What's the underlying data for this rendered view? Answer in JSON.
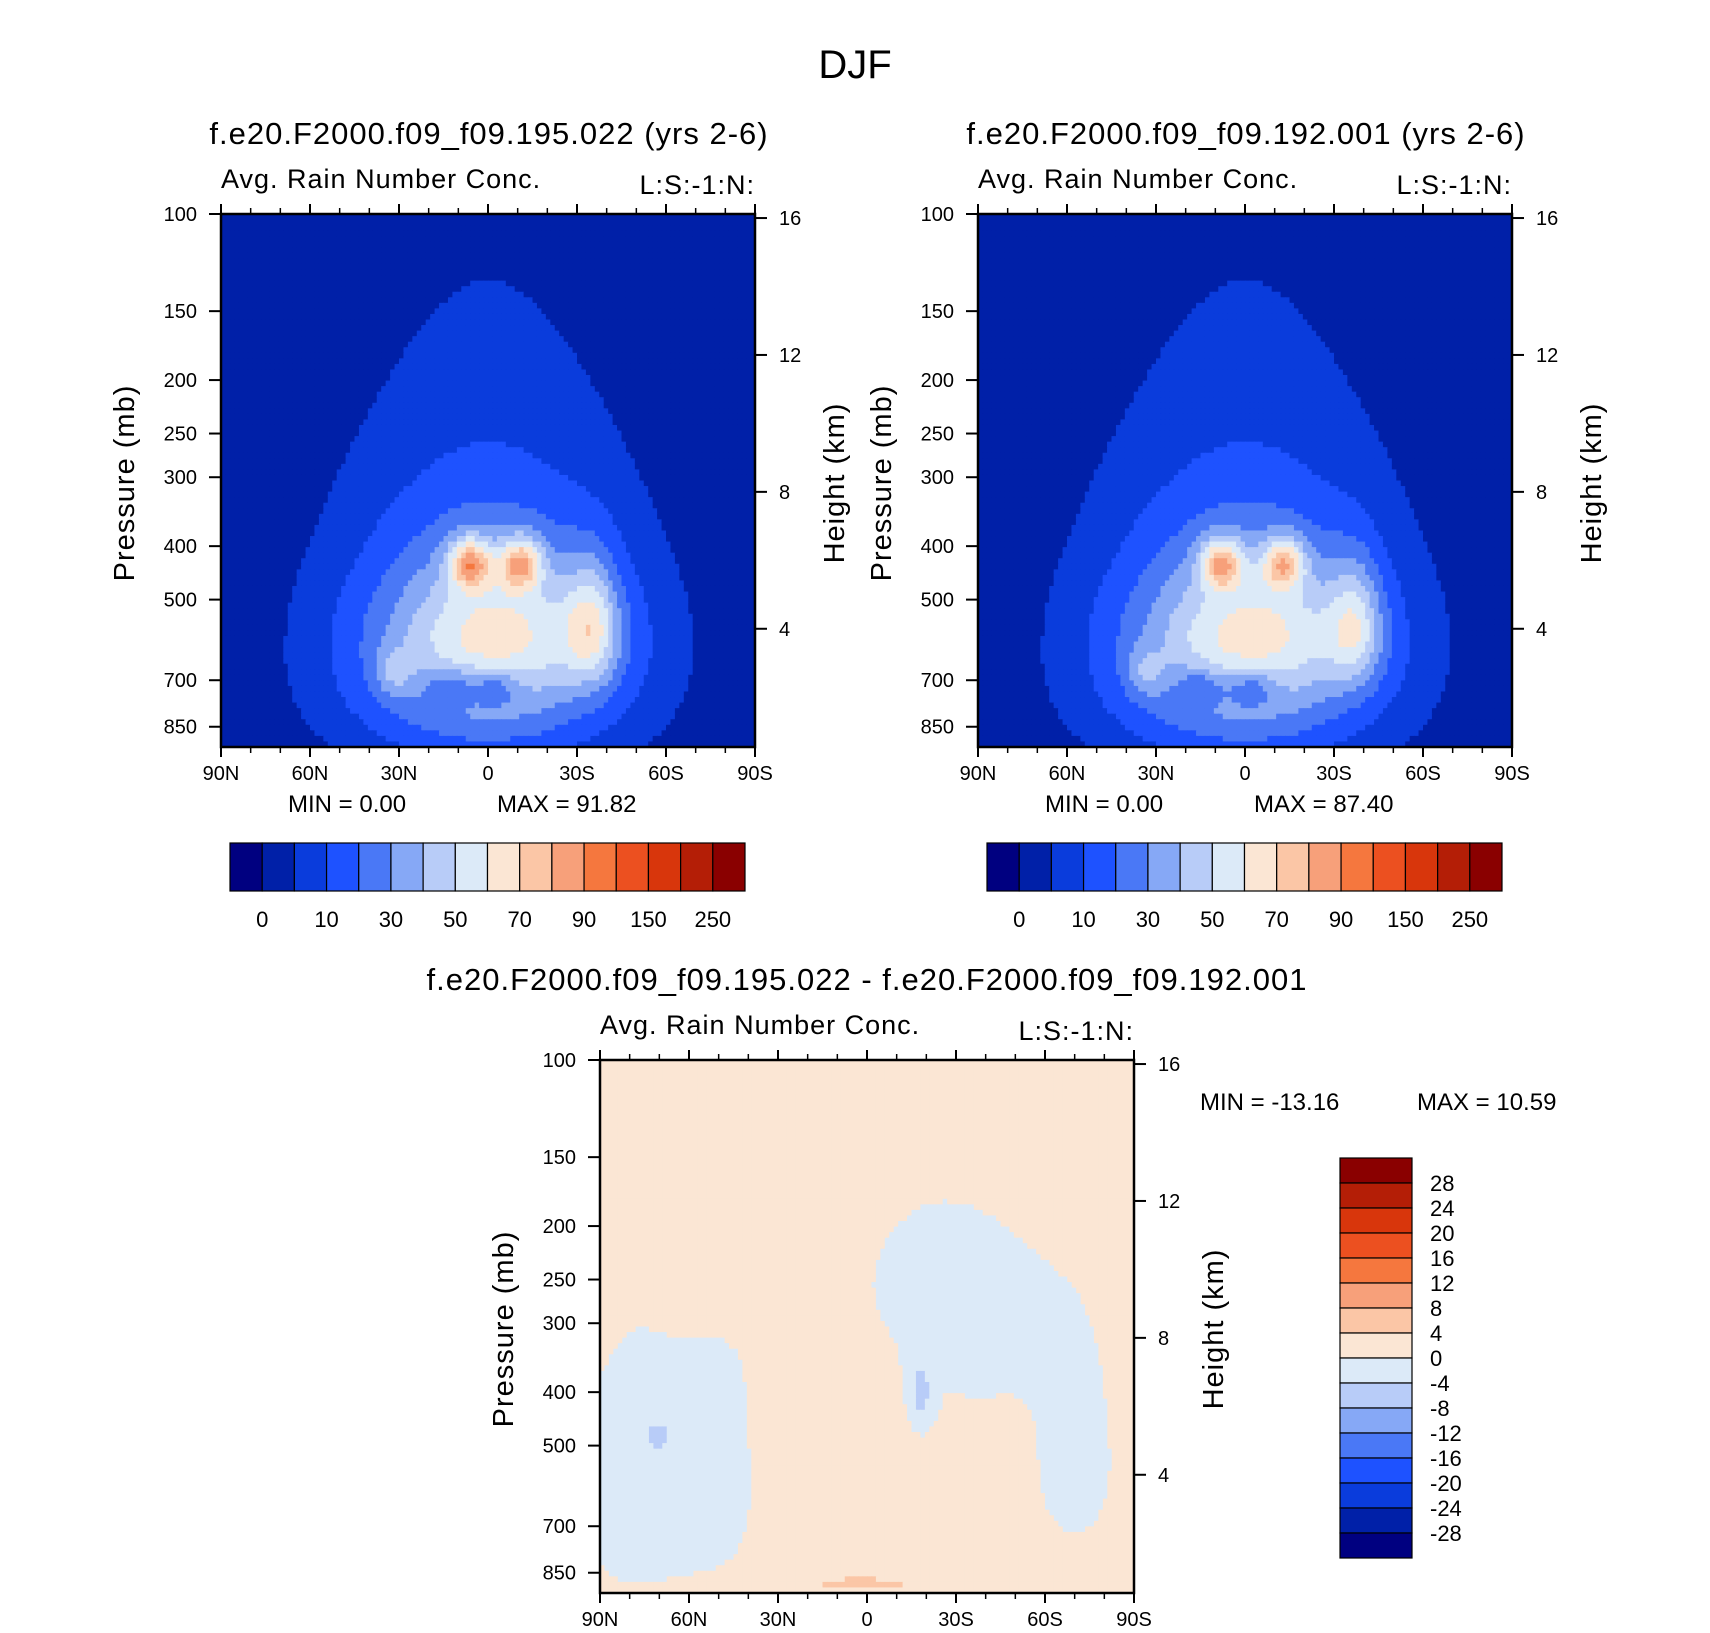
{
  "title": "DJF",
  "panels": [
    {
      "case": "f.e20.F2000.f09_f09.195.022 (yrs 2-6)",
      "variable": "Avg. Rain Number Conc.",
      "level": "L:S:-1:N:",
      "ylabel": "Pressure (mb)",
      "ylabel_right": "Height (km)",
      "min_text": "MIN =     0.00",
      "max_text": "MAX =    91.82"
    },
    {
      "case": "f.e20.F2000.f09_f09.192.001 (yrs 2-6)",
      "variable": "Avg. Rain Number Conc.",
      "level": "L:S:-1:N:",
      "ylabel": "Pressure (mb)",
      "ylabel_right": "Height (km)",
      "min_text": "MIN =     0.00",
      "max_text": "MAX =    87.40"
    },
    {
      "case": "f.e20.F2000.f09_f09.195.022 - f.e20.F2000.f09_f09.192.001",
      "variable": "Avg. Rain Number Conc.",
      "level": "L:S:-1:N:",
      "ylabel": "Pressure (mb)",
      "ylabel_right": "Height (km)",
      "min_text": "MIN = -13.16",
      "max_text": "MAX =    10.59"
    }
  ],
  "chart_data": [
    {
      "type": "heatmap",
      "title": "f.e20.F2000.f09_f09.195.022 (yrs 2-6)",
      "subtitle": "Avg. Rain Number Conc.",
      "x_ticks": [
        "90N",
        "60N",
        "30N",
        "0",
        "30S",
        "60S",
        "90S"
      ],
      "x_values": [
        90,
        60,
        30,
        0,
        -30,
        -60,
        -90
      ],
      "y_ticks": [
        100,
        150,
        200,
        250,
        300,
        400,
        500,
        700,
        850
      ],
      "y_range_mb": [
        100,
        925
      ],
      "y2_ticks_km": [
        16,
        12,
        8,
        4
      ],
      "min": 0.0,
      "max": 91.82,
      "field": {
        "base": 0,
        "blobs": [
          {
            "lat": 0,
            "p": 600,
            "slat": 58,
            "sp": 430,
            "v": 3
          },
          {
            "lat": 0,
            "p": 650,
            "slat": 45,
            "sp": 280,
            "v": 2.5
          },
          {
            "lat": -5,
            "p": 560,
            "slat": 33,
            "sp": 150,
            "v": 2.3
          },
          {
            "lat": -35,
            "p": 560,
            "slat": 9,
            "sp": 140,
            "v": 3.6
          },
          {
            "lat": 6,
            "p": 430,
            "slat": 7,
            "sp": 45,
            "v": 5.2
          },
          {
            "lat": -11,
            "p": 430,
            "slat": 7,
            "sp": 45,
            "v": 5.0
          },
          {
            "lat": -2,
            "p": 720,
            "slat": 9,
            "sp": 60,
            "v": -2.2
          },
          {
            "lat": 13,
            "p": 720,
            "slat": 8,
            "sp": 60,
            "v": -2.0
          },
          {
            "lat": 32,
            "p": 680,
            "slat": 6,
            "sp": 70,
            "v": 1.5
          }
        ]
      },
      "colorbar": {
        "labels": [
          "0",
          "10",
          "30",
          "50",
          "70",
          "90",
          "150",
          "250"
        ],
        "colors": [
          "#000080",
          "#0020a8",
          "#0a3cdc",
          "#1e52ff",
          "#4a78f6",
          "#86a8f6",
          "#b8ccf8",
          "#dceaf8",
          "#fbe6d4",
          "#fbc6a6",
          "#f7a07a",
          "#f5773e",
          "#ec5020",
          "#d8360c",
          "#b41e06",
          "#8a0000"
        ]
      }
    },
    {
      "type": "heatmap",
      "title": "f.e20.F2000.f09_f09.192.001 (yrs 2-6)",
      "subtitle": "Avg. Rain Number Conc.",
      "x_ticks": [
        "90N",
        "60N",
        "30N",
        "0",
        "30S",
        "60S",
        "90S"
      ],
      "x_values": [
        90,
        60,
        30,
        0,
        -30,
        -60,
        -90
      ],
      "y_ticks": [
        100,
        150,
        200,
        250,
        300,
        400,
        500,
        700,
        850
      ],
      "y_range_mb": [
        100,
        925
      ],
      "y2_ticks_km": [
        16,
        12,
        8,
        4
      ],
      "min": 0.0,
      "max": 87.4,
      "field": {
        "base": 0,
        "blobs": [
          {
            "lat": 0,
            "p": 600,
            "slat": 58,
            "sp": 430,
            "v": 3
          },
          {
            "lat": 0,
            "p": 650,
            "slat": 45,
            "sp": 280,
            "v": 2.5
          },
          {
            "lat": -5,
            "p": 560,
            "slat": 33,
            "sp": 150,
            "v": 2.3
          },
          {
            "lat": -37,
            "p": 560,
            "slat": 9,
            "sp": 140,
            "v": 3.3
          },
          {
            "lat": 8,
            "p": 430,
            "slat": 7,
            "sp": 45,
            "v": 4.8
          },
          {
            "lat": -13,
            "p": 430,
            "slat": 7,
            "sp": 45,
            "v": 4.6
          },
          {
            "lat": -2,
            "p": 720,
            "slat": 9,
            "sp": 60,
            "v": -2.2
          },
          {
            "lat": 15,
            "p": 720,
            "slat": 8,
            "sp": 60,
            "v": -2.0
          },
          {
            "lat": 34,
            "p": 680,
            "slat": 6,
            "sp": 70,
            "v": 1.5
          }
        ]
      },
      "colorbar": {
        "labels": [
          "0",
          "10",
          "30",
          "50",
          "70",
          "90",
          "150",
          "250"
        ],
        "colors": [
          "#000080",
          "#0020a8",
          "#0a3cdc",
          "#1e52ff",
          "#4a78f6",
          "#86a8f6",
          "#b8ccf8",
          "#dceaf8",
          "#fbe6d4",
          "#fbc6a6",
          "#f7a07a",
          "#f5773e",
          "#ec5020",
          "#d8360c",
          "#b41e06",
          "#8a0000"
        ]
      }
    },
    {
      "type": "heatmap",
      "title": "f.e20.F2000.f09_f09.195.022 - f.e20.F2000.f09_f09.192.001",
      "subtitle": "Avg. Rain Number Conc.",
      "x_ticks": [
        "90N",
        "60N",
        "30N",
        "0",
        "30S",
        "60S",
        "90S"
      ],
      "x_values": [
        90,
        60,
        30,
        0,
        -30,
        -60,
        -90
      ],
      "y_ticks": [
        100,
        150,
        200,
        250,
        300,
        400,
        500,
        700,
        850
      ],
      "y_range_mb": [
        100,
        925
      ],
      "y2_ticks_km": [
        16,
        12,
        8,
        4
      ],
      "min": -13.16,
      "max": 10.59,
      "field": {
        "base": 0.5,
        "blobs": [
          {
            "lat": 60,
            "p": 600,
            "slat": 28,
            "sp": 260,
            "v": -1.3
          },
          {
            "lat": 80,
            "p": 600,
            "slat": 12,
            "sp": 200,
            "v": -2
          },
          {
            "lat": 70,
            "p": 480,
            "slat": 6,
            "sp": 40,
            "v": -4
          },
          {
            "lat": -20,
            "p": 300,
            "slat": 50,
            "sp": 140,
            "v": -1.1
          },
          {
            "lat": -70,
            "p": 550,
            "slat": 14,
            "sp": 200,
            "v": -1
          },
          {
            "lat": -18,
            "p": 400,
            "slat": 4,
            "sp": 60,
            "v": -6
          },
          {
            "lat": 5,
            "p": 620,
            "slat": 22,
            "sp": 260,
            "v": 3
          },
          {
            "lat": -35,
            "p": 780,
            "slat": 10,
            "sp": 120,
            "v": 2.5
          },
          {
            "lat": 0,
            "p": 890,
            "slat": 30,
            "sp": 30,
            "v": 3.5
          }
        ]
      },
      "colorbar": {
        "labels": [
          "28",
          "24",
          "20",
          "16",
          "12",
          "8",
          "4",
          "0",
          "-4",
          "-8",
          "-12",
          "-16",
          "-20",
          "-24",
          "-28"
        ],
        "colors": [
          "#8a0000",
          "#b41e06",
          "#d8360c",
          "#ec5020",
          "#f5773e",
          "#f7a07a",
          "#fbc6a6",
          "#fbe6d4",
          "#dceaf8",
          "#b8ccf8",
          "#86a8f6",
          "#4a78f6",
          "#1e52ff",
          "#0a3cdc",
          "#0020a8",
          "#000080"
        ]
      }
    }
  ]
}
